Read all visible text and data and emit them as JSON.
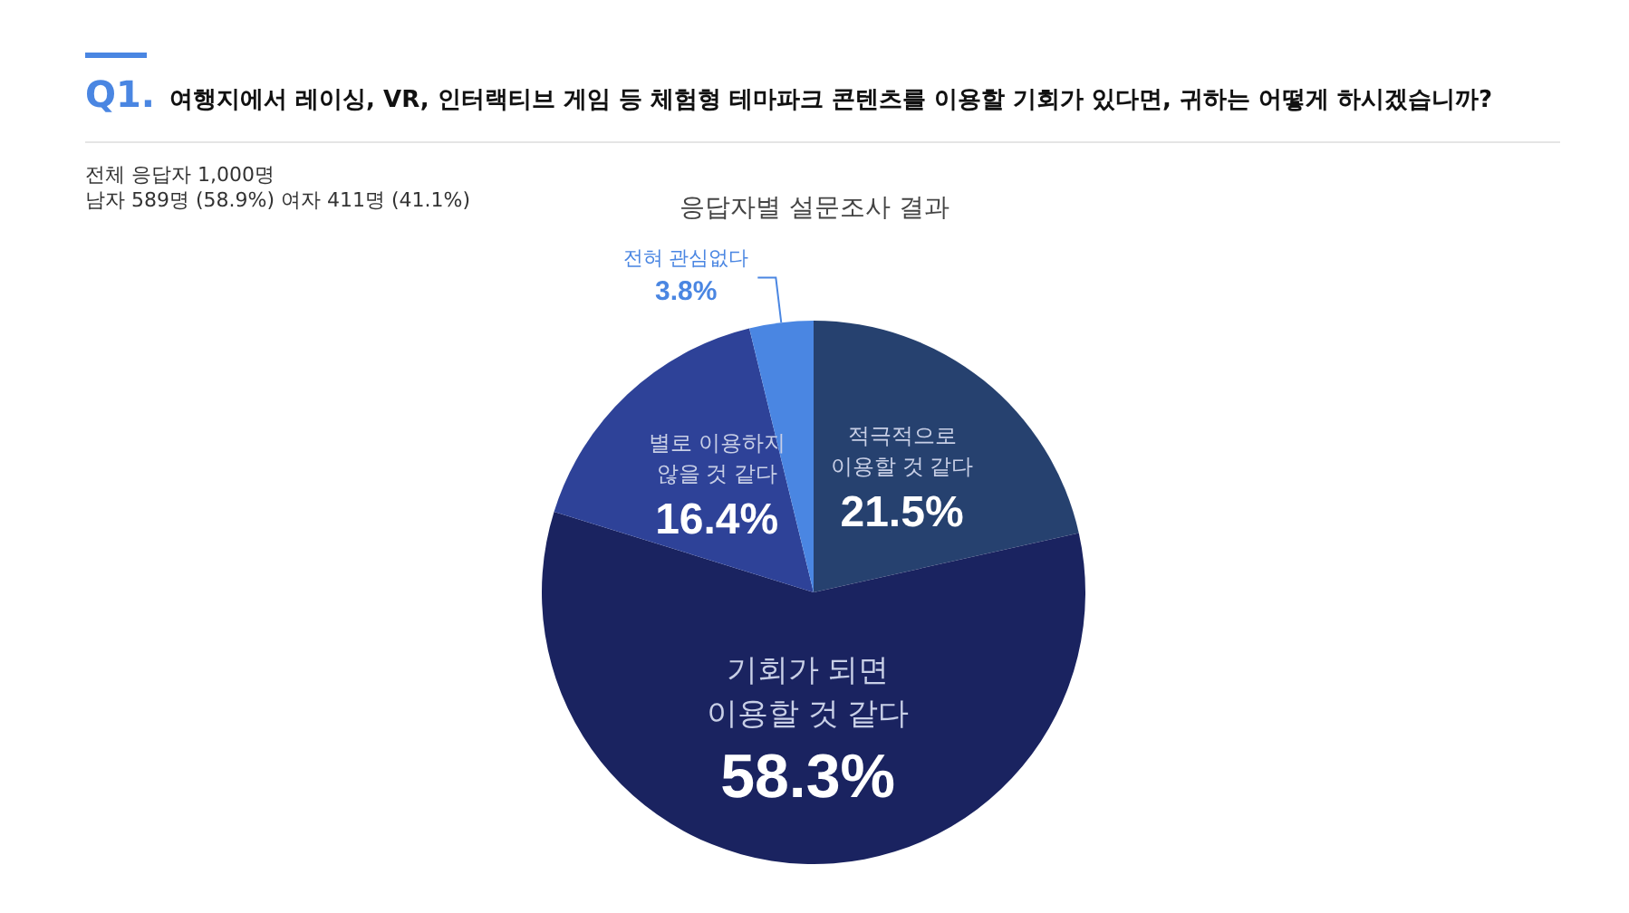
{
  "chart_data": {
    "type": "pie",
    "title": "Q1. 여행지에서 레이싱, VR, 인터랙티브 게임 등 체험형 테마파크 콘텐츠를 이용할 기회가 있다면, 귀하는 어떻게 하시겠습니까?",
    "subtitle": "응답자별 설문조사 결과",
    "annotations": [
      "전체 응답자 1,000명",
      "남자 589명 (58.9%) 여자 411명 (41.1%)"
    ],
    "categories": [
      "적극적으로 이용할 것 같다",
      "기회가 되면 이용할 것 같다",
      "별로 이용하지 않을 것 같다",
      "전혀 관심없다"
    ],
    "values": [
      21.5,
      58.3,
      16.4,
      3.8
    ],
    "value_labels": [
      "21.5%",
      "58.3%",
      "16.4%",
      "3.8%"
    ],
    "colors": [
      "#26416f",
      "#1a2360",
      "#2e4298",
      "#4a86e2"
    ],
    "legend": false
  }
}
